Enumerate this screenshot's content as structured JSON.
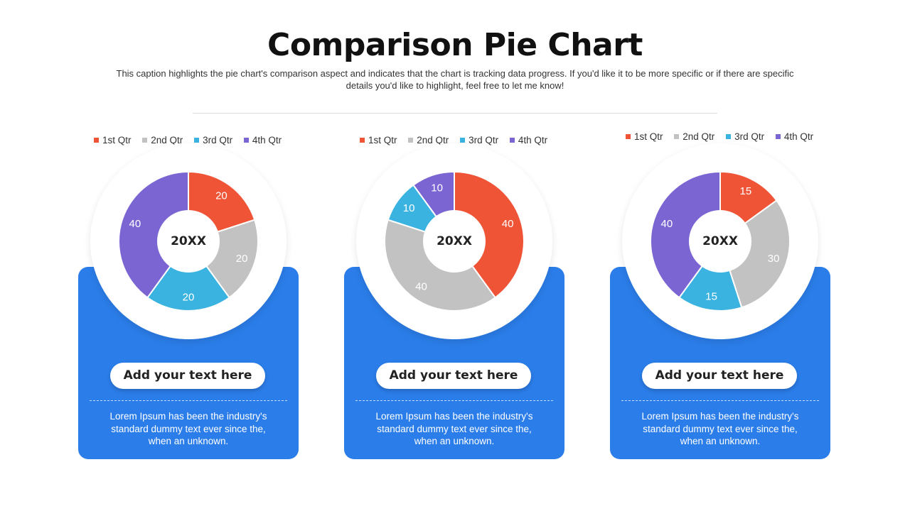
{
  "header": {
    "title": "Comparison Pie Chart",
    "caption": "This caption highlights the pie chart's comparison aspect and indicates that the chart is tracking data progress. If you'd like it to be more specific or if there are specific details you'd like to highlight, feel free to let me know!"
  },
  "colors": {
    "q1": "#ef5437",
    "q2": "#c2c2c2",
    "q3": "#3ab3e0",
    "q4": "#7a65d3",
    "card": "#2b7de9"
  },
  "chart_data": [
    {
      "type": "pie",
      "center_label": "20XX",
      "categories": [
        "1st Qtr",
        "2nd Qtr",
        "3rd Qtr",
        "4th Qtr"
      ],
      "values": [
        20,
        20,
        20,
        40
      ],
      "legend_position": "top",
      "card_title": "Add your text here",
      "card_text": "Lorem Ipsum has been the industry's standard dummy text ever since the, when an unknown."
    },
    {
      "type": "pie",
      "center_label": "20XX",
      "categories": [
        "1st Qtr",
        "2nd Qtr",
        "3rd Qtr",
        "4th Qtr"
      ],
      "values": [
        40,
        40,
        10,
        10
      ],
      "legend_position": "top",
      "card_title": "Add your text here",
      "card_text": "Lorem Ipsum has been the industry's standard dummy text ever since the, when an unknown."
    },
    {
      "type": "pie",
      "center_label": "20XX",
      "categories": [
        "1st Qtr",
        "2nd Qtr",
        "3rd Qtr",
        "4th Qtr"
      ],
      "values": [
        15,
        30,
        15,
        40
      ],
      "legend_position": "top",
      "card_title": "Add your text here",
      "card_text": "Lorem Ipsum has been the industry's standard dummy text ever since the, when an unknown."
    }
  ]
}
